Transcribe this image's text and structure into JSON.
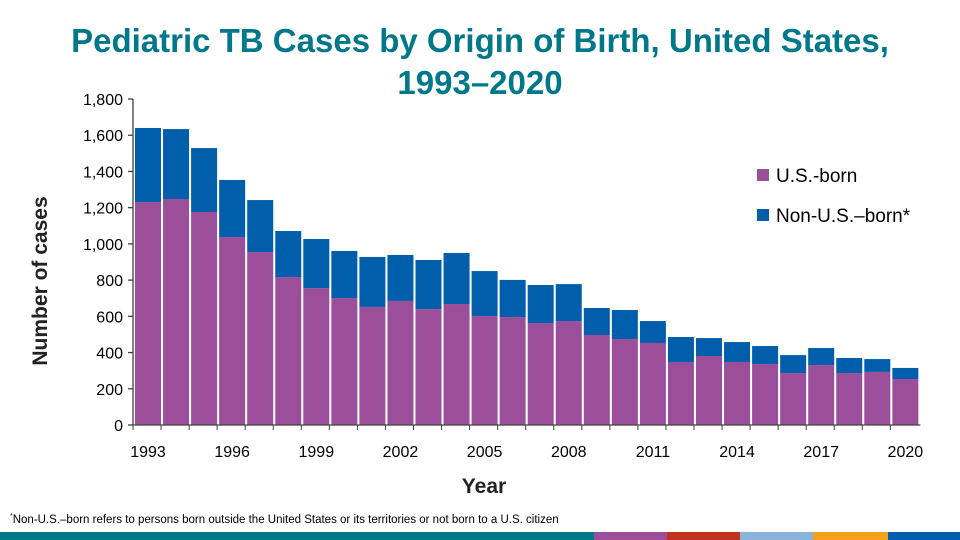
{
  "chart_data": {
    "type": "bar",
    "stacked": true,
    "title": "Pediatric TB Cases by Origin of Birth, United States, 1993–2020",
    "title_lines": [
      "Pediatric TB Cases by Origin of Birth, United States,",
      "1993–2020"
    ],
    "xlabel": "Year",
    "ylabel": "Number of cases",
    "ylim": [
      0,
      1800
    ],
    "yticks": [
      "0",
      "200",
      "400",
      "600",
      "800",
      "1,000",
      "1,200",
      "1,400",
      "1,600",
      "1,800"
    ],
    "xtick_labels": [
      "1993",
      "1996",
      "1999",
      "2002",
      "2005",
      "2008",
      "2011",
      "2014",
      "2017",
      "2020"
    ],
    "categories": [
      1993,
      1994,
      1995,
      1996,
      1997,
      1998,
      1999,
      2000,
      2001,
      2002,
      2003,
      2004,
      2005,
      2006,
      2007,
      2008,
      2009,
      2010,
      2011,
      2012,
      2013,
      2014,
      2015,
      2016,
      2017,
      2018,
      2019,
      2020
    ],
    "legend_position": "right",
    "grid": false,
    "series": [
      {
        "name": "U.S.-born",
        "color": "#9b4f9b",
        "values": [
          1231,
          1248,
          1176,
          1038,
          955,
          817,
          756,
          701,
          652,
          685,
          640,
          668,
          602,
          596,
          563,
          574,
          497,
          475,
          453,
          348,
          381,
          348,
          337,
          287,
          331,
          287,
          293,
          254
        ]
      },
      {
        "name": "Non-U.S.–born*",
        "color": "#005eaa",
        "values": [
          409,
          386,
          353,
          315,
          287,
          254,
          271,
          260,
          276,
          254,
          271,
          282,
          248,
          205,
          210,
          204,
          149,
          160,
          121,
          138,
          99,
          110,
          99,
          99,
          94,
          83,
          71,
          61
        ]
      }
    ]
  },
  "footnote": {
    "marker": "*",
    "text": "Non-U.S.–born refers to persons born outside the United States or its territories or not born to a U.S. citizen"
  },
  "footer_strip_colors": [
    "#00788a",
    "#9b4f9b",
    "#c0311f",
    "#88b4d9",
    "#f5a01a",
    "#005eaa"
  ]
}
